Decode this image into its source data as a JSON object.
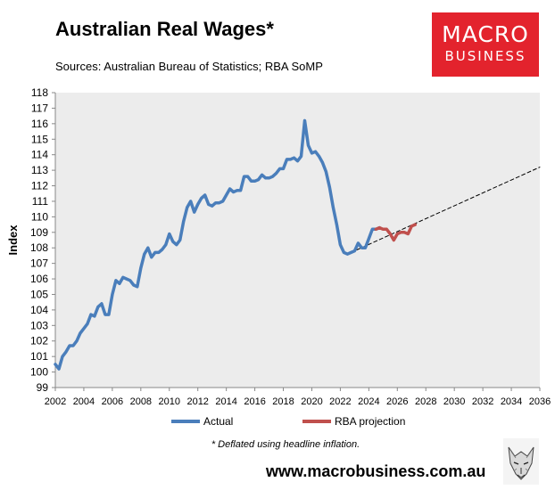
{
  "title": "Australian Real Wages*",
  "subtitle": "Sources: Australian Bureau of Statistics; RBA SoMP",
  "logo": {
    "line1": "MACRO",
    "line2": "BUSINESS",
    "color": "#e3232d"
  },
  "footnote": "* Deflated using headline inflation.",
  "website": "www.macrobusiness.com.au",
  "avatar_icon": "wolf-sketch-icon",
  "chart_data": {
    "type": "line",
    "title": "Australian Real Wages*",
    "xlabel": "",
    "ylabel": "Index",
    "xlim": [
      2002,
      2036
    ],
    "ylim": [
      99,
      118
    ],
    "xticks": [
      "2002",
      "2004",
      "2006",
      "2008",
      "2010",
      "2012",
      "2014",
      "2016",
      "2018",
      "2020",
      "2022",
      "2024",
      "2026",
      "2028",
      "2030",
      "2032",
      "2034",
      "2036"
    ],
    "yticks": [
      "99",
      "100",
      "101",
      "102",
      "103",
      "104",
      "105",
      "106",
      "107",
      "108",
      "109",
      "110",
      "111",
      "112",
      "113",
      "114",
      "115",
      "116",
      "117",
      "118"
    ],
    "plot_background": "#ececec",
    "grid": false,
    "legend": "bottom",
    "series": [
      {
        "name": "Actual",
        "color": "#4a7ebb",
        "style": "solid",
        "points": [
          [
            2002.0,
            100.5
          ],
          [
            2002.25,
            100.2
          ],
          [
            2002.5,
            101.0
          ],
          [
            2002.75,
            101.3
          ],
          [
            2003.0,
            101.7
          ],
          [
            2003.25,
            101.7
          ],
          [
            2003.5,
            102.0
          ],
          [
            2003.75,
            102.5
          ],
          [
            2004.0,
            102.8
          ],
          [
            2004.25,
            103.1
          ],
          [
            2004.5,
            103.7
          ],
          [
            2004.75,
            103.6
          ],
          [
            2005.0,
            104.2
          ],
          [
            2005.25,
            104.4
          ],
          [
            2005.5,
            103.7
          ],
          [
            2005.75,
            103.7
          ],
          [
            2006.0,
            105.0
          ],
          [
            2006.25,
            105.9
          ],
          [
            2006.5,
            105.7
          ],
          [
            2006.75,
            106.1
          ],
          [
            2007.0,
            106.0
          ],
          [
            2007.25,
            105.9
          ],
          [
            2007.5,
            105.6
          ],
          [
            2007.75,
            105.5
          ],
          [
            2008.0,
            106.7
          ],
          [
            2008.25,
            107.6
          ],
          [
            2008.5,
            108.0
          ],
          [
            2008.75,
            107.4
          ],
          [
            2009.0,
            107.7
          ],
          [
            2009.25,
            107.7
          ],
          [
            2009.5,
            107.9
          ],
          [
            2009.75,
            108.2
          ],
          [
            2010.0,
            108.9
          ],
          [
            2010.25,
            108.4
          ],
          [
            2010.5,
            108.2
          ],
          [
            2010.75,
            108.5
          ],
          [
            2011.0,
            109.7
          ],
          [
            2011.25,
            110.6
          ],
          [
            2011.5,
            111.0
          ],
          [
            2011.75,
            110.3
          ],
          [
            2012.0,
            110.8
          ],
          [
            2012.25,
            111.2
          ],
          [
            2012.5,
            111.4
          ],
          [
            2012.75,
            110.8
          ],
          [
            2013.0,
            110.7
          ],
          [
            2013.25,
            110.9
          ],
          [
            2013.5,
            110.9
          ],
          [
            2013.75,
            111.0
          ],
          [
            2014.0,
            111.4
          ],
          [
            2014.25,
            111.8
          ],
          [
            2014.5,
            111.6
          ],
          [
            2014.75,
            111.7
          ],
          [
            2015.0,
            111.7
          ],
          [
            2015.25,
            112.6
          ],
          [
            2015.5,
            112.6
          ],
          [
            2015.75,
            112.3
          ],
          [
            2016.0,
            112.3
          ],
          [
            2016.25,
            112.4
          ],
          [
            2016.5,
            112.7
          ],
          [
            2016.75,
            112.5
          ],
          [
            2017.0,
            112.5
          ],
          [
            2017.25,
            112.6
          ],
          [
            2017.5,
            112.8
          ],
          [
            2017.75,
            113.1
          ],
          [
            2018.0,
            113.1
          ],
          [
            2018.25,
            113.7
          ],
          [
            2018.5,
            113.7
          ],
          [
            2018.75,
            113.8
          ],
          [
            2019.0,
            113.6
          ],
          [
            2019.25,
            113.9
          ],
          [
            2019.5,
            116.2
          ],
          [
            2019.75,
            114.6
          ],
          [
            2020.0,
            114.1
          ],
          [
            2020.25,
            114.2
          ],
          [
            2020.5,
            113.9
          ],
          [
            2020.75,
            113.5
          ],
          [
            2021.0,
            112.9
          ],
          [
            2021.25,
            111.9
          ],
          [
            2021.5,
            110.6
          ],
          [
            2021.75,
            109.5
          ],
          [
            2022.0,
            108.2
          ],
          [
            2022.25,
            107.7
          ],
          [
            2022.5,
            107.6
          ],
          [
            2022.75,
            107.7
          ],
          [
            2023.0,
            107.8
          ],
          [
            2023.25,
            108.3
          ],
          [
            2023.5,
            108.0
          ],
          [
            2023.75,
            108.0
          ],
          [
            2024.0,
            108.6
          ],
          [
            2024.25,
            109.2
          ],
          [
            2024.5,
            109.2
          ],
          [
            2024.75,
            109.3
          ]
        ]
      },
      {
        "name": "RBA projection",
        "color": "#c0504d",
        "style": "solid",
        "points": [
          [
            2024.5,
            109.2
          ],
          [
            2024.75,
            109.3
          ],
          [
            2025.0,
            109.2
          ],
          [
            2025.25,
            109.2
          ],
          [
            2025.5,
            108.9
          ],
          [
            2025.75,
            108.5
          ],
          [
            2026.0,
            108.9
          ],
          [
            2026.25,
            109.0
          ],
          [
            2026.5,
            109.0
          ],
          [
            2026.75,
            108.9
          ],
          [
            2027.0,
            109.4
          ],
          [
            2027.25,
            109.5
          ]
        ]
      },
      {
        "name": "trend",
        "color": "#000000",
        "style": "dashed",
        "points": [
          [
            2022.75,
            107.7
          ],
          [
            2036.0,
            113.2
          ]
        ]
      }
    ]
  }
}
